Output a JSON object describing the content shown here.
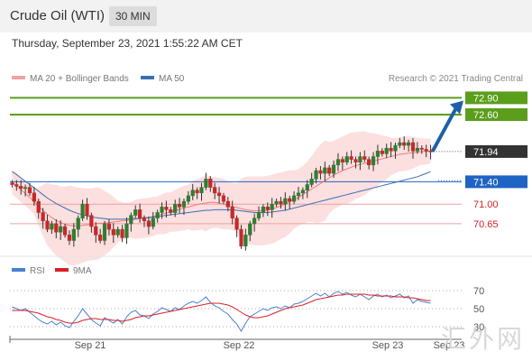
{
  "header": {
    "title": "Crude Oil (WTI)",
    "timeframe": "30 MIN"
  },
  "datetime": "Thursday, September 23, 2021 1:55:22 AM CET",
  "watermark": "汇外网",
  "legend": {
    "bb": "MA 20 + Bollinger Bands",
    "ma50": "MA 50",
    "credit": "Research © 2021 Trading Central"
  },
  "rsi_legend": {
    "rsi": "RSI",
    "ma": "9MA"
  },
  "colors": {
    "up": "#2e7d32",
    "down": "#c62828",
    "bands": "#fbd9d9",
    "ma20": "#ef7b7b",
    "ma50": "#3b6fb6",
    "target": "#5a9e1b",
    "current": "#333333",
    "pivot": "#1f64c2",
    "support": "#d81f26",
    "arrow": "#1f5fa8",
    "rsi": "#4a7fd0",
    "rsi_ma": "#d81f26"
  },
  "chart_data": [
    {
      "type": "candlestick",
      "x_labels": [
        "Sep 21",
        "Sep 22",
        "Sep 23",
        "Sep 23"
      ],
      "ylim": [
        70.1,
        73.1
      ],
      "levels": [
        {
          "value": 72.9,
          "label": "72.90",
          "kind": "target"
        },
        {
          "value": 72.6,
          "label": "72.60",
          "kind": "target"
        },
        {
          "value": 71.94,
          "label": "71.94",
          "kind": "current"
        },
        {
          "value": 71.4,
          "label": "71.40",
          "kind": "pivot"
        },
        {
          "value": 71.0,
          "label": "71.00",
          "kind": "support"
        },
        {
          "value": 70.65,
          "label": "70.65",
          "kind": "support"
        }
      ],
      "close": [
        71.35,
        71.32,
        71.28,
        71.3,
        71.2,
        71.05,
        70.85,
        70.7,
        70.55,
        70.65,
        70.5,
        70.6,
        70.45,
        70.35,
        70.55,
        70.75,
        71.0,
        70.8,
        70.6,
        70.45,
        70.35,
        70.65,
        70.55,
        70.45,
        70.55,
        70.4,
        70.65,
        70.8,
        70.9,
        70.75,
        70.7,
        70.6,
        70.75,
        70.85,
        70.95,
        70.9,
        70.85,
        71.0,
        70.95,
        71.05,
        71.15,
        71.25,
        71.2,
        71.3,
        71.45,
        71.3,
        71.2,
        71.15,
        71.05,
        70.95,
        70.75,
        70.55,
        70.25,
        70.45,
        70.65,
        70.75,
        70.85,
        70.95,
        70.9,
        71.0,
        71.05,
        71.0,
        71.1,
        71.05,
        71.15,
        71.2,
        71.25,
        71.35,
        71.45,
        71.6,
        71.55,
        71.65,
        71.55,
        71.7,
        71.8,
        71.75,
        71.85,
        71.8,
        71.75,
        71.85,
        71.8,
        71.7,
        71.85,
        71.95,
        71.9,
        72.0,
        71.95,
        72.05,
        72.1,
        72.05,
        72.1,
        71.95,
        72.0,
        71.98,
        71.95,
        71.94
      ],
      "series": [
        {
          "name": "MA 20",
          "values": [
            71.4,
            71.33,
            71.26,
            71.19,
            71.12,
            71.04,
            70.96,
            70.89,
            70.82,
            70.76,
            70.71,
            70.67,
            70.64,
            70.62,
            70.61,
            70.61,
            70.62,
            70.63,
            70.64,
            70.65,
            70.66,
            70.66,
            70.67,
            70.68,
            70.69,
            70.7,
            70.71,
            70.72,
            70.73,
            70.74,
            70.75,
            70.76,
            70.78,
            70.8,
            70.82,
            70.84,
            70.86,
            70.88,
            70.91,
            70.93,
            70.95,
            70.97,
            70.99,
            71.01,
            71.02,
            71.03,
            71.03,
            71.02,
            71.0,
            70.98,
            70.96,
            70.94,
            70.92,
            70.9,
            70.89,
            70.88,
            70.88,
            70.88,
            70.89,
            70.91,
            70.94,
            70.97,
            71.0,
            71.04,
            71.08,
            71.12,
            71.17,
            71.22,
            71.27,
            71.32,
            71.37,
            71.42,
            71.47,
            71.52,
            71.56,
            71.6,
            71.63,
            71.66,
            71.69,
            71.71,
            71.73,
            71.75,
            71.77,
            71.79,
            71.81,
            71.83,
            71.85,
            71.87,
            71.89,
            71.9,
            71.91,
            71.92,
            71.93,
            71.94,
            71.94,
            71.95
          ]
        },
        {
          "name": "MA 50",
          "values": [
            71.58,
            71.53,
            71.47,
            71.41,
            71.35,
            71.29,
            71.23,
            71.17,
            71.11,
            71.06,
            71.01,
            70.97,
            70.93,
            70.89,
            70.86,
            70.83,
            70.81,
            70.79,
            70.77,
            70.76,
            70.75,
            70.74,
            70.73,
            70.73,
            70.73,
            70.73,
            70.73,
            70.74,
            70.74,
            70.75,
            70.76,
            70.76,
            70.77,
            70.78,
            70.79,
            70.8,
            70.81,
            70.82,
            70.83,
            70.84,
            70.85,
            70.86,
            70.87,
            70.88,
            70.89,
            70.89,
            70.9,
            70.9,
            70.9,
            70.9,
            70.9,
            70.89,
            70.88,
            70.87,
            70.86,
            70.85,
            70.85,
            70.85,
            70.85,
            70.86,
            70.87,
            70.88,
            70.89,
            70.91,
            70.93,
            70.95,
            70.97,
            70.99,
            71.01,
            71.03,
            71.05,
            71.07,
            71.09,
            71.11,
            71.13,
            71.15,
            71.17,
            71.19,
            71.21,
            71.23,
            71.25,
            71.27,
            71.29,
            71.31,
            71.33,
            71.35,
            71.37,
            71.39,
            71.41,
            71.43,
            71.45,
            71.47,
            71.49,
            71.52,
            71.55,
            71.58
          ]
        }
      ]
    },
    {
      "type": "line",
      "title": "RSI",
      "ylim": [
        20,
        80
      ],
      "yticks": [
        30,
        50,
        70
      ],
      "series": [
        {
          "name": "RSI",
          "values": [
            52,
            50,
            48,
            50,
            46,
            42,
            38,
            35,
            33,
            36,
            32,
            35,
            31,
            29,
            36,
            42,
            50,
            44,
            38,
            34,
            31,
            40,
            37,
            34,
            38,
            33,
            41,
            46,
            48,
            43,
            42,
            39,
            44,
            47,
            51,
            49,
            47,
            51,
            49,
            53,
            56,
            58,
            56,
            59,
            63,
            57,
            53,
            51,
            47,
            44,
            38,
            33,
            25,
            34,
            41,
            44,
            47,
            50,
            48,
            51,
            52,
            50,
            53,
            51,
            55,
            56,
            58,
            61,
            64,
            67,
            64,
            67,
            63,
            67,
            69,
            66,
            68,
            65,
            63,
            66,
            63,
            60,
            64,
            66,
            63,
            65,
            62,
            64,
            66,
            62,
            64,
            56,
            60,
            58,
            57,
            56
          ]
        },
        {
          "name": "9MA",
          "values": [
            48,
            48,
            48,
            48,
            47,
            46,
            45,
            43,
            41,
            40,
            38,
            37,
            35,
            34,
            34,
            35,
            37,
            38,
            39,
            39,
            38,
            38,
            38,
            37,
            37,
            36,
            37,
            38,
            40,
            41,
            42,
            42,
            43,
            44,
            45,
            46,
            47,
            48,
            49,
            50,
            51,
            52,
            53,
            54,
            55,
            56,
            56,
            56,
            55,
            54,
            52,
            49,
            46,
            43,
            41,
            40,
            40,
            41,
            42,
            44,
            46,
            48,
            50,
            51,
            52,
            53,
            54,
            56,
            58,
            60,
            61,
            62,
            63,
            64,
            65,
            65,
            66,
            66,
            66,
            66,
            66,
            65,
            65,
            64,
            64,
            64,
            64,
            63,
            63,
            63,
            62,
            62,
            61,
            60,
            59,
            59
          ]
        }
      ]
    }
  ]
}
